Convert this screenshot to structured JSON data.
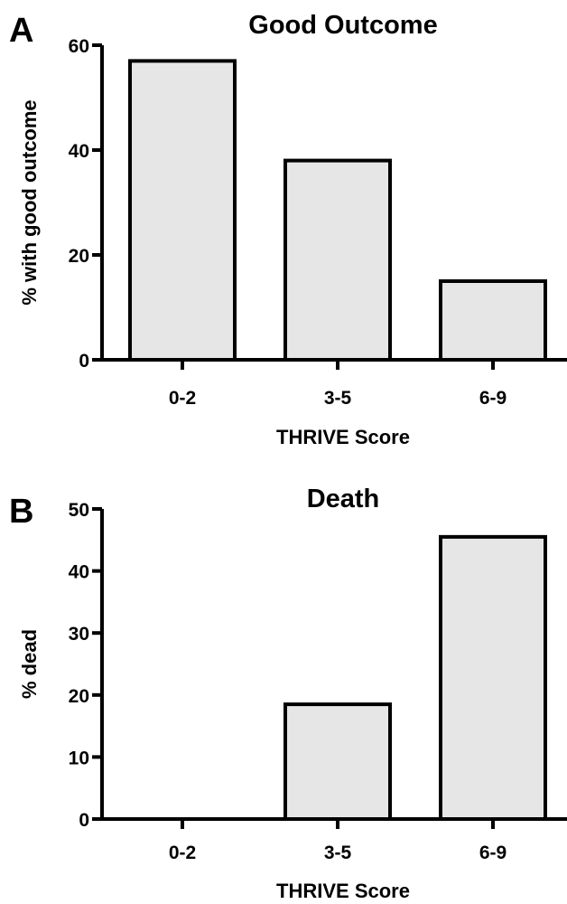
{
  "chart_data": [
    {
      "panel": "A",
      "type": "bar",
      "title": "Good Outcome",
      "xlabel": "THRIVE Score",
      "ylabel": "% with good outcome",
      "categories": [
        "0-2",
        "3-5",
        "6-9"
      ],
      "values": [
        57,
        38,
        15
      ],
      "ylim": [
        0,
        60
      ],
      "yticks": [
        0,
        20,
        40,
        60
      ],
      "grid": false,
      "bar_fill": "#e6e6e6"
    },
    {
      "panel": "B",
      "type": "bar",
      "title": "Death",
      "xlabel": "THRIVE Score",
      "ylabel": "% dead",
      "categories": [
        "0-2",
        "3-5",
        "6-9"
      ],
      "values": [
        0,
        18.5,
        45.5
      ],
      "ylim": [
        0,
        50
      ],
      "yticks": [
        0,
        10,
        20,
        30,
        40,
        50
      ],
      "grid": false,
      "bar_fill": "#e6e6e6"
    }
  ]
}
